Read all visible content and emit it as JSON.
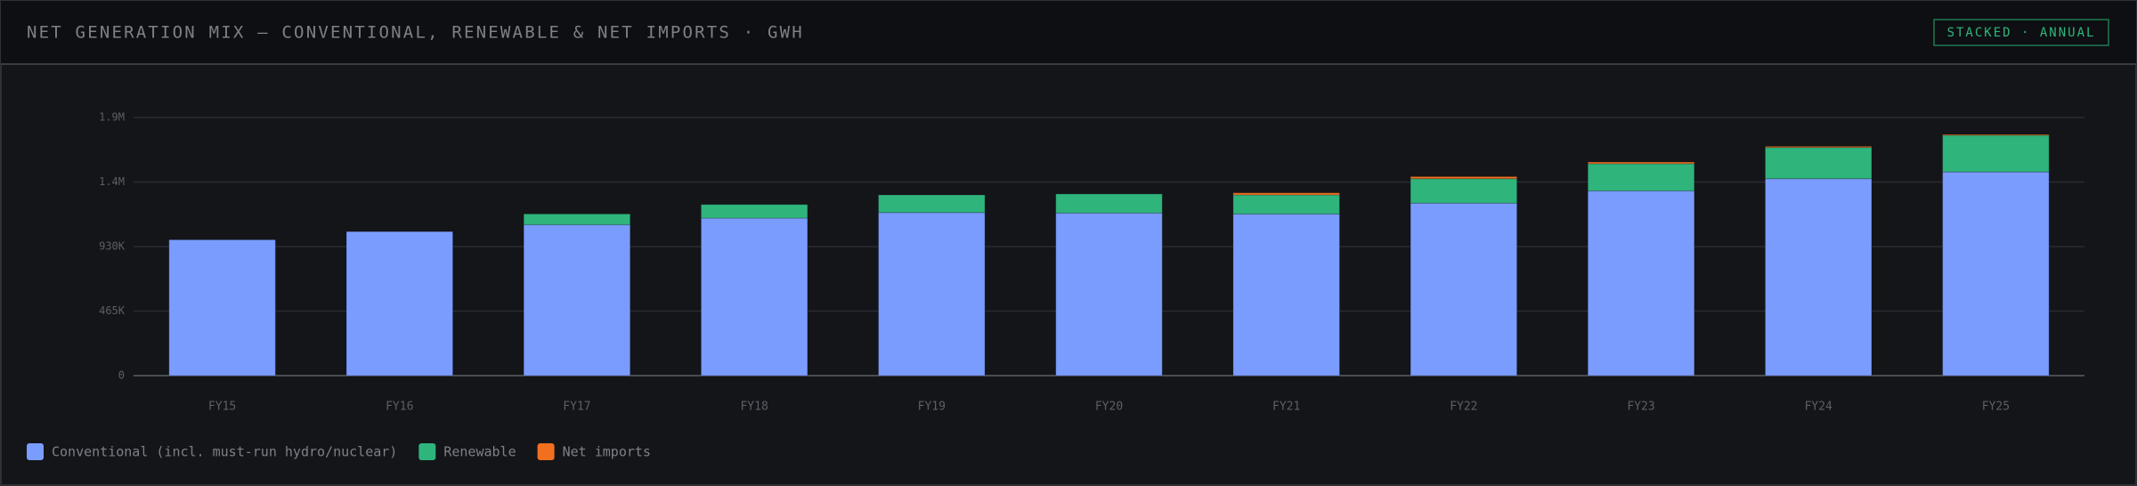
{
  "header": {
    "title": "NET GENERATION MIX — CONVENTIONAL, RENEWABLE & NET IMPORTS · GWH",
    "badge": "STACKED · ANNUAL"
  },
  "chart_data": {
    "type": "stacked-bar",
    "categories": [
      "FY15",
      "FY16",
      "FY17",
      "FY18",
      "FY19",
      "FY20",
      "FY21",
      "FY22",
      "FY23",
      "FY24",
      "FY25"
    ],
    "series": [
      {
        "name": "Conventional (incl. must-run hydro/nuclear)",
        "color": "#7b9cff",
        "values": [
          979000,
          1038000,
          1087000,
          1135000,
          1175000,
          1172000,
          1165000,
          1243000,
          1331000,
          1419000,
          1468000
        ]
      },
      {
        "name": "Renewable",
        "color": "#2fb57c",
        "values": [
          0,
          0,
          78000,
          98000,
          127000,
          137000,
          137000,
          176000,
          196000,
          225000,
          264000
        ]
      },
      {
        "name": "Net imports",
        "color": "#f07020",
        "values": [
          0,
          0,
          0,
          0,
          0,
          0,
          15000,
          15000,
          12000,
          8000,
          6000
        ]
      }
    ],
    "ylim": [
      0,
      1860000
    ],
    "yticks": [
      0,
      {
        "value": 465000,
        "label": "465K"
      },
      {
        "value": 930000,
        "label": "930K"
      },
      {
        "value": 1395000,
        "label": "1.4M"
      },
      {
        "value": 1860000,
        "label": "1.9M"
      }
    ],
    "grid": true
  }
}
